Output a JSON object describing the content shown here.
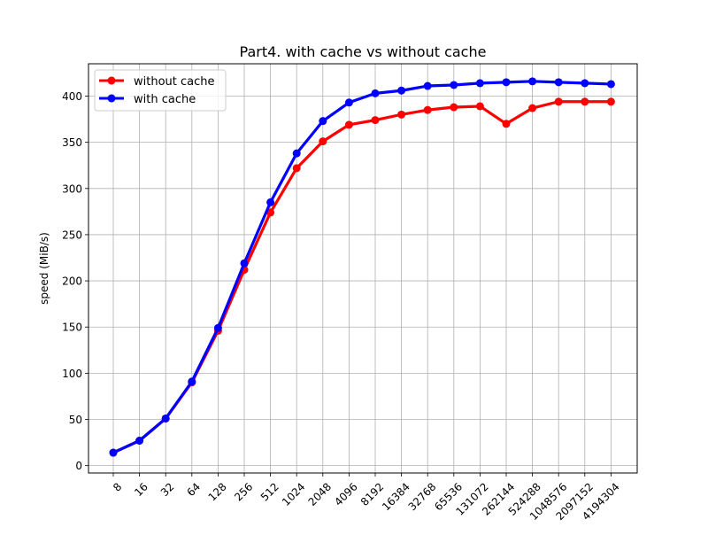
{
  "chart_data": {
    "type": "line",
    "title": "Part4. with cache vs without cache",
    "xlabel": "",
    "ylabel": "speed (MiB/s)",
    "categories": [
      "8",
      "16",
      "32",
      "64",
      "128",
      "256",
      "512",
      "1024",
      "2048",
      "4096",
      "8192",
      "16384",
      "32768",
      "65536",
      "131072",
      "262144",
      "524288",
      "1048576",
      "2097152",
      "4194304"
    ],
    "ylim": [
      -8,
      435
    ],
    "yticks": [
      0,
      50,
      100,
      150,
      200,
      250,
      300,
      350,
      400
    ],
    "grid": true,
    "legend_position": "upper-left",
    "series": [
      {
        "name": "without cache",
        "color": "#ff0000",
        "values": [
          14,
          27,
          51,
          90,
          146,
          212,
          274,
          322,
          351,
          369,
          374,
          380,
          385,
          388,
          389,
          370,
          387,
          394,
          394,
          394
        ]
      },
      {
        "name": "with cache",
        "color": "#0000ff",
        "values": [
          14,
          27,
          51,
          91,
          149,
          219,
          285,
          338,
          373,
          393,
          403,
          406,
          411,
          412,
          414,
          415,
          416,
          415,
          414,
          413
        ]
      }
    ]
  }
}
